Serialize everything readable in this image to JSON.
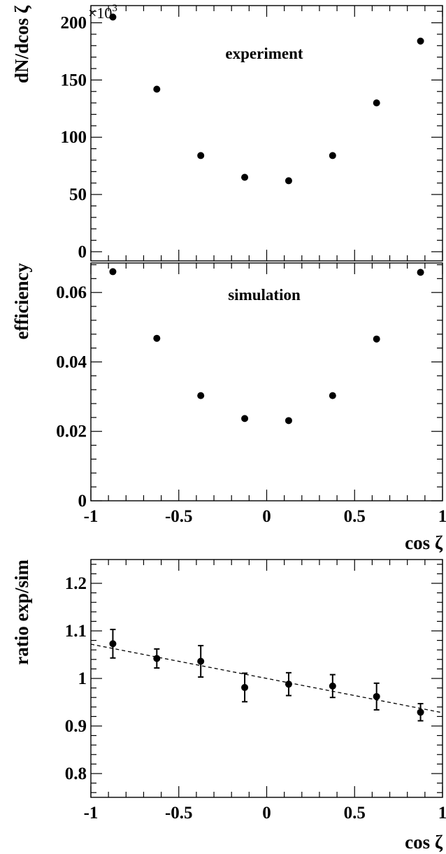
{
  "chart_data": [
    {
      "type": "scatter",
      "title": "",
      "annotation": "experiment",
      "xlabel": "",
      "ylabel": "dN/dcos ζ",
      "y_multiplier": "×10",
      "y_multiplier_exponent": "3",
      "xlim": [
        -1,
        1
      ],
      "ylim": [
        -8,
        215
      ],
      "yticks": [
        0,
        50,
        100,
        150,
        200
      ],
      "ytick_labels": [
        "0",
        "50",
        "100",
        "150",
        "200"
      ],
      "series": [
        {
          "x": [
            -0.875,
            -0.625,
            -0.375,
            -0.125,
            0.125,
            0.375,
            0.625,
            0.875
          ],
          "y": [
            205,
            142,
            84,
            65,
            62,
            84,
            130,
            184
          ]
        }
      ]
    },
    {
      "type": "scatter",
      "title": "",
      "annotation": "simulation",
      "xlabel": "cos ζ",
      "ylabel": "efficiency",
      "xlim": [
        -1,
        1
      ],
      "ylim": [
        0,
        0.0685
      ],
      "xticks": [
        -1,
        -0.5,
        0,
        0.5,
        1
      ],
      "xtick_labels": [
        "-1",
        "-0.5",
        "0",
        "0.5",
        "1"
      ],
      "yticks": [
        0,
        0.02,
        0.04,
        0.06
      ],
      "ytick_labels": [
        "0",
        "0.02",
        "0.04",
        "0.06"
      ],
      "series": [
        {
          "x": [
            -0.875,
            -0.625,
            -0.375,
            -0.125,
            0.125,
            0.375,
            0.625,
            0.875
          ],
          "y": [
            0.066,
            0.0468,
            0.0303,
            0.0237,
            0.0231,
            0.0303,
            0.0466,
            0.0658
          ]
        }
      ]
    },
    {
      "type": "scatter",
      "title": "",
      "xlabel": "cos ζ",
      "ylabel": "ratio exp/sim",
      "xlim": [
        -1,
        1
      ],
      "ylim": [
        0.75,
        1.25
      ],
      "xticks": [
        -1,
        -0.5,
        0,
        0.5,
        1
      ],
      "xtick_labels": [
        "-1",
        "-0.5",
        "0",
        "0.5",
        "1"
      ],
      "yticks": [
        0.8,
        0.9,
        1.0,
        1.1,
        1.2
      ],
      "ytick_labels": [
        "0.8",
        "0.9",
        "1",
        "1.1",
        "1.2"
      ],
      "series": [
        {
          "x": [
            -0.875,
            -0.625,
            -0.375,
            -0.125,
            0.125,
            0.375,
            0.625,
            0.875
          ],
          "y": [
            1.073,
            1.042,
            1.036,
            0.981,
            0.988,
            0.984,
            0.962,
            0.929
          ],
          "yerr": [
            0.03,
            0.02,
            0.033,
            0.03,
            0.024,
            0.024,
            0.028,
            0.018
          ]
        }
      ],
      "fit_line": {
        "style": "dashed",
        "x": [
          -1,
          1
        ],
        "y": [
          1.072,
          0.928
        ]
      }
    }
  ]
}
